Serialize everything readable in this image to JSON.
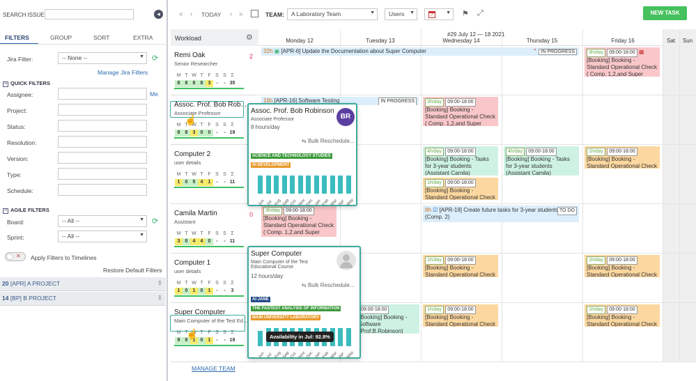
{
  "search": {
    "label": "SEARCH ISSUES:",
    "value": ""
  },
  "left_tabs": [
    "FILTERS",
    "GROUP",
    "SORT",
    "EXTRA"
  ],
  "jira_filter": {
    "label": "Jira Filter:",
    "value": "-- None --",
    "manage": "Manage Jira Filters"
  },
  "quick": {
    "title": "QUICK FILTERS",
    "assignee": "Assignee:",
    "me": "Me",
    "project": "Project:",
    "status": "Status:",
    "resolution": "Resolution:",
    "version": "Version:",
    "type": "Type:",
    "schedule": "Schedule:"
  },
  "agile": {
    "title": "AGILE FILTERS",
    "board": "Board:",
    "board_value": "-- All --",
    "sprint": "Sprint:",
    "sprint_value": "-- All --",
    "apply": "Apply Filters to Timelines",
    "restore": "Restore Default Filters"
  },
  "projects": [
    {
      "count": "20",
      "name": "[APR] A PROJECT"
    },
    {
      "count": "14",
      "name": "[BP] B PROJECT"
    }
  ],
  "toolbar": {
    "today": "TODAY",
    "team_label": "TEAM:",
    "team_value": "A Laboratory Team",
    "view_value": "Users",
    "cal_value": "7",
    "new_task": "NEW TASK"
  },
  "workload": "Workload",
  "week": "#29 July 12 — 18 2021",
  "columns": [
    "Monday 12",
    "Tuesday 13",
    "Wednesday 14",
    "Thursday 15",
    "Friday 16",
    "Sat",
    "Sun"
  ],
  "day_letters": [
    "M",
    "T",
    "W",
    "T",
    "F",
    "S",
    "S",
    "Σ"
  ],
  "resources": [
    {
      "name": "Remi Oak",
      "sub": "Senior Researcher",
      "count": "2",
      "nums": [
        "8",
        "8",
        "8",
        "8",
        "3",
        "-",
        "-",
        "35"
      ]
    },
    {
      "name": "Assoc. Prof. Bob Rob...",
      "sub": "Associate Professor",
      "count": "",
      "nums": [
        "8",
        "8",
        "3",
        "0",
        "0",
        "-",
        "-",
        "19"
      ]
    },
    {
      "name": "Computer 2",
      "sub": "user details",
      "count": "",
      "nums": [
        "1",
        "0",
        "5",
        "4",
        "1",
        "-",
        "-",
        "11"
      ]
    },
    {
      "name": "Camila Martin",
      "sub": "Assistant",
      "count": "0",
      "nums": [
        "3",
        "0",
        "4",
        "4",
        "0",
        "-",
        "-",
        "11"
      ]
    },
    {
      "name": "Computer 1",
      "sub": "user details",
      "count": "",
      "nums": [
        "1",
        "0",
        "1",
        "0",
        "1",
        "-",
        "-",
        "3"
      ]
    },
    {
      "name": "Super Computer",
      "sub": "Main Computer of the Test Ed...",
      "count": "",
      "nums": [
        "9",
        "8",
        "1",
        "0",
        "1",
        "-",
        "-",
        "19"
      ]
    }
  ],
  "cards": {
    "apr6": {
      "hrs": "32h",
      "text": "[APR-6] Update the Documentation about Super Computer",
      "status": "IN PROGRESS"
    },
    "apr16": {
      "hrs": "16h",
      "text": "[APR-16] Software Testing",
      "status": "IN PROGRESS"
    },
    "apr19": {
      "hrs": "8h",
      "text": "[APR-19] Create future tasks for 3-year students (Comp. 2)",
      "status": "TO DO"
    },
    "time": "09:00-18:00",
    "b3": "3h/day",
    "b4": "4h/day",
    "b1": "1h/day",
    "check": "[Booking] Booking - Standard Operational Check ( Comp. 1,2,and Super Comp.)",
    "tasks": "[Booking] Booking - Tasks for 3-year students (Assistant Camila)",
    "soc": "[Booking] Booking - Standard Operational Check",
    "sw": "[Booking] Booking - Software",
    "sw2": "(Prof.B.Robinson)"
  },
  "pop1": {
    "name": "Assoc. Prof. Bob Robinson",
    "title": "Associate Professor",
    "hours": "8 hours/day",
    "initials": "BR",
    "bulk": "Bulk Reschedule...",
    "tags": [
      "SCIENCE AND TECHNOLOGY STUDIES",
      "AI DEVELOPMENT"
    ]
  },
  "pop2": {
    "name": "Super Computer",
    "title": "Main Computer of the Test Educational Course",
    "hours": "12 hours/day",
    "bulk": "Bulk Reschedule...",
    "tags": [
      "AI JANE",
      "THE FASTEST ANALYSIS OF INFORMATION",
      "MAIN UNIVERSITY LABORATORY"
    ],
    "tooltip": "Availability in Jul: 92.8%"
  },
  "months": [
    "Jun",
    "Jul",
    "Aug",
    "Sep",
    "Oct",
    "Nov",
    "Dec",
    "Jan",
    "Feb",
    "Mar",
    "Apr",
    "May"
  ],
  "manage_team": "MANAGE TEAM",
  "colors": {
    "accent": "#3cb371",
    "teal": "#3aa99a",
    "new_task": "#46c15d",
    "avatar": "#5b3fa0"
  }
}
